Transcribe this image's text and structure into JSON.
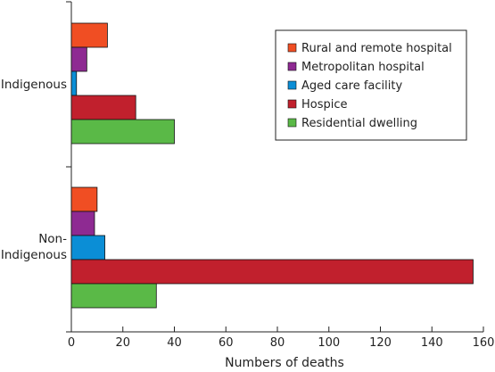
{
  "chart_data": {
    "type": "bar",
    "orientation": "horizontal",
    "title": "",
    "xlabel": "Numbers of deaths",
    "ylabel": "",
    "xlim": [
      0,
      160
    ],
    "x_ticks": [
      0,
      20,
      40,
      60,
      80,
      100,
      120,
      140,
      160
    ],
    "categories": [
      {
        "label_lines": [
          "Indigenous"
        ]
      },
      {
        "label_lines": [
          "Non-",
          "Indigenous"
        ]
      }
    ],
    "grid": false,
    "legend_position": "top-right",
    "series": [
      {
        "name": "Rural and remote hospital",
        "color": "#f04e23",
        "values": [
          14,
          10
        ]
      },
      {
        "name": "Metropolitan hospital",
        "color": "#8e2a92",
        "values": [
          6,
          9
        ]
      },
      {
        "name": "Aged care facility",
        "color": "#0b8ed6",
        "values": [
          2,
          13
        ]
      },
      {
        "name": "Hospice",
        "color": "#c1202d",
        "values": [
          25,
          156
        ]
      },
      {
        "name": "Residential dwelling",
        "color": "#5ab947",
        "values": [
          40,
          33
        ]
      }
    ]
  }
}
